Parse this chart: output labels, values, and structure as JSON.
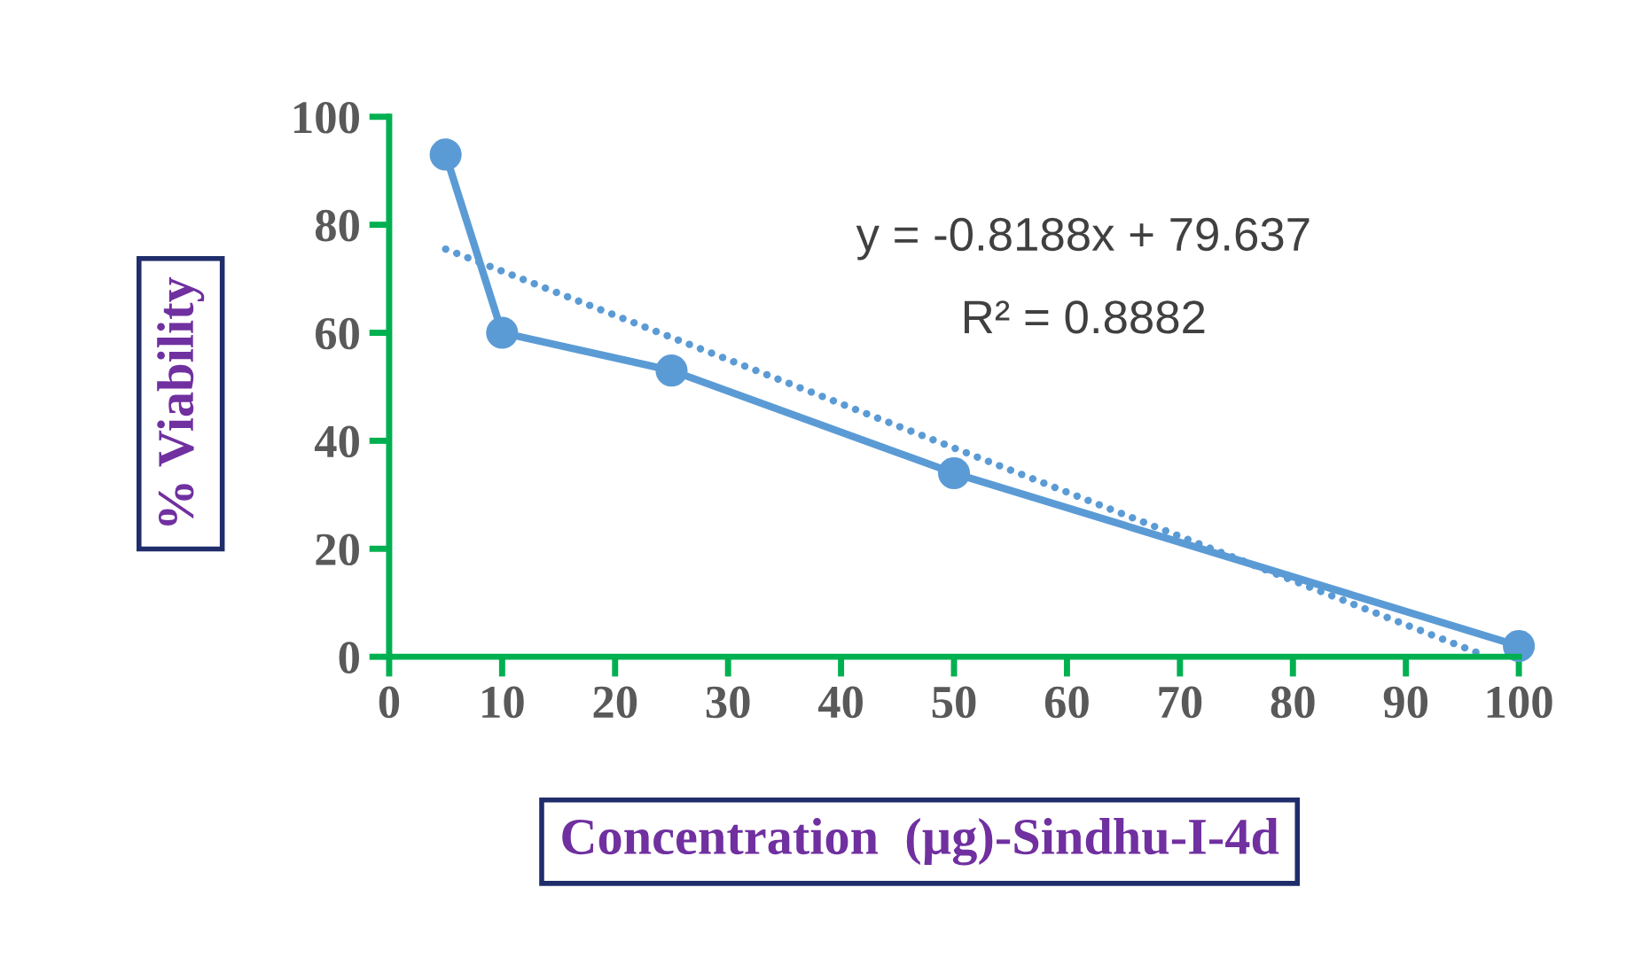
{
  "chart_data": {
    "type": "line",
    "xlabel": "Concentration  (µg)-Sindhu-I-4d",
    "ylabel": "% Viability",
    "x": [
      5,
      10,
      25,
      50,
      100
    ],
    "series": [
      {
        "color": "#5b9bd5",
        "values": [
          93,
          60,
          53,
          34,
          2
        ],
        "marker": "circle",
        "line_style": "solid"
      },
      {
        "color": "#5b9bd5",
        "x": [
          5,
          97
        ],
        "values": [
          75.5,
          0.2
        ],
        "marker": "none",
        "line_style": "dotted"
      }
    ],
    "annotations": [
      "y = -0.8188x + 79.637",
      "R² = 0.8882"
    ],
    "xlim": [
      0,
      100
    ],
    "ylim": [
      0,
      100
    ],
    "xticks": [
      0,
      10,
      20,
      30,
      40,
      50,
      60,
      70,
      80,
      90,
      100
    ],
    "yticks": [
      0,
      20,
      40,
      60,
      80,
      100
    ],
    "grid": false,
    "legend": false
  }
}
